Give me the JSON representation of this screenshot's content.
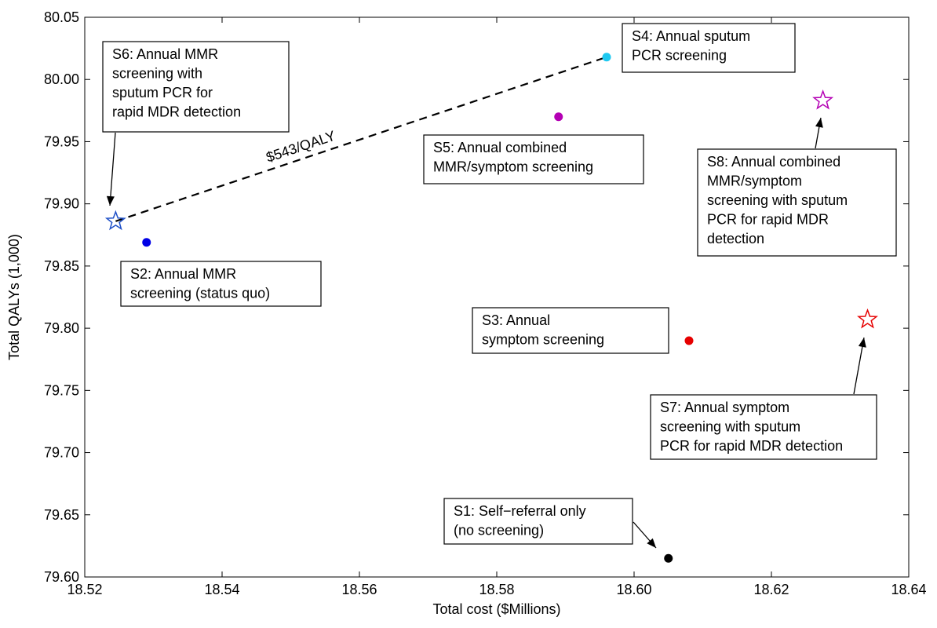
{
  "chart_data": {
    "type": "scatter",
    "title": "",
    "xlabel": "Total cost ($Millions)",
    "ylabel": "Total QALYs (1,000)",
    "xlim": [
      18.52,
      18.64
    ],
    "ylim": [
      79.6,
      80.05
    ],
    "x_ticks": [
      "18.52",
      "18.54",
      "18.56",
      "18.58",
      "18.60",
      "18.62",
      "18.64"
    ],
    "y_ticks": [
      "79.60",
      "79.65",
      "79.70",
      "79.75",
      "79.80",
      "79.85",
      "79.90",
      "79.95",
      "80.00",
      "80.05"
    ],
    "grid": false,
    "points": [
      {
        "id": "S1",
        "x": 18.605,
        "y": 79.615,
        "marker": "dot",
        "color": "#000000",
        "label": [
          "S1: Self−referral only",
          "(no screening)"
        ]
      },
      {
        "id": "S2",
        "x": 18.529,
        "y": 79.869,
        "marker": "dot",
        "color": "#0000e6",
        "label": [
          "S2: Annual MMR",
          "screening (status quo)"
        ]
      },
      {
        "id": "S3",
        "x": 18.608,
        "y": 79.79,
        "marker": "dot",
        "color": "#e60000",
        "label": [
          "S3: Annual",
          "symptom screening"
        ]
      },
      {
        "id": "S4",
        "x": 18.596,
        "y": 80.018,
        "marker": "dot",
        "color": "#1ec8f0",
        "label": [
          "S4: Annual sputum",
          "PCR screening"
        ]
      },
      {
        "id": "S5",
        "x": 18.589,
        "y": 79.97,
        "marker": "dot",
        "color": "#b400b4",
        "label": [
          "S5: Annual combined",
          "MMR/symptom screening"
        ]
      },
      {
        "id": "S6",
        "x": 18.5245,
        "y": 79.886,
        "marker": "star",
        "color": "#1e50c8",
        "label": [
          "S6: Annual MMR",
          "screening with",
          "sputum PCR for",
          "rapid MDR detection"
        ]
      },
      {
        "id": "S7",
        "x": 18.634,
        "y": 79.807,
        "marker": "star",
        "color": "#e60000",
        "label": [
          "S7: Annual symptom",
          "screening with sputum",
          "PCR for rapid MDR detection"
        ]
      },
      {
        "id": "S8",
        "x": 18.6275,
        "y": 79.983,
        "marker": "star",
        "color": "#b400b4",
        "label": [
          "S8: Annual combined",
          "MMR/symptom",
          "screening with sputum",
          "PCR for rapid MDR",
          "detection"
        ]
      }
    ],
    "frontier": {
      "from": "S6",
      "to": "S4",
      "style": "dashed",
      "label": "$543/QALY"
    }
  }
}
